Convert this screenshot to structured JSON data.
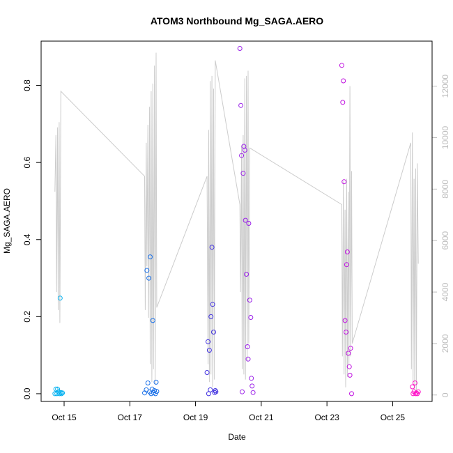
{
  "chart_data": {
    "type": "scatter",
    "title": "ATOM3 Northbound Mg_SAGA.AERO",
    "xlabel": "Date",
    "ylabel": "Mg_SAGA.AERO",
    "x_ticks": [
      "Oct 15",
      "Oct 17",
      "Oct 19",
      "Oct 21",
      "Oct 23",
      "Oct 25"
    ],
    "x_tick_days": [
      15,
      17,
      19,
      21,
      23,
      25
    ],
    "xlim": [
      14.3,
      26.2
    ],
    "ylim": [
      -0.02,
      0.915
    ],
    "y_ticks": [
      "0.0",
      "0.2",
      "0.4",
      "0.6",
      "0.8"
    ],
    "y_tick_values": [
      0.0,
      0.2,
      0.4,
      0.6,
      0.8
    ],
    "y2_ticks": [
      "0",
      "2000",
      "4000",
      "6000",
      "8000",
      "10000",
      "12000"
    ],
    "y2_tick_values": [
      0,
      2000,
      4000,
      6000,
      8000,
      10000,
      12000
    ],
    "y2lim": [
      -250,
      13750
    ],
    "line_color": "#cccccc",
    "scatter_series": [
      {
        "color": "#00b0f0",
        "x": [
          14.72,
          14.75,
          14.78,
          14.8,
          14.83,
          14.86,
          14.88,
          14.9,
          14.92,
          14.95
        ],
        "y": [
          0.0,
          0.012,
          0.0,
          0.012,
          0.005,
          0.0,
          0.248,
          0.003,
          0.0,
          0.002
        ]
      },
      {
        "color": "#1a70e8",
        "x": [
          17.45,
          17.5,
          17.52,
          17.55,
          17.58,
          17.6,
          17.62,
          17.65,
          17.68,
          17.7,
          17.72,
          17.75,
          17.78,
          17.8,
          17.82
        ],
        "y": [
          0.002,
          0.01,
          0.32,
          0.028,
          0.3,
          0.005,
          0.355,
          0.0,
          0.012,
          0.19,
          0.003,
          0.008,
          0.0,
          0.03,
          0.006
        ]
      },
      {
        "color": "#4030e0",
        "x": [
          19.35,
          19.38,
          19.4,
          19.42,
          19.45,
          19.47,
          19.5,
          19.52,
          19.55,
          19.58,
          19.6,
          19.62
        ],
        "y": [
          0.055,
          0.135,
          0.0,
          0.113,
          0.01,
          0.2,
          0.38,
          0.232,
          0.16,
          0.003,
          0.008,
          0.005
        ]
      },
      {
        "color": "#9a20e8",
        "x": [
          20.35,
          20.38,
          20.4,
          20.42,
          20.45,
          20.47,
          20.5,
          20.52,
          20.55,
          20.58,
          20.6,
          20.62,
          20.65,
          20.68,
          20.7,
          20.72,
          20.75
        ],
        "y": [
          0.896,
          0.748,
          0.618,
          0.005,
          0.572,
          0.642,
          0.632,
          0.45,
          0.31,
          0.122,
          0.09,
          0.442,
          0.243,
          0.198,
          0.04,
          0.02,
          0.003
        ]
      },
      {
        "color": "#c010e0",
        "x": [
          23.45,
          23.48,
          23.5,
          23.52,
          23.55,
          23.58,
          23.6,
          23.62,
          23.65,
          23.68,
          23.7,
          23.72,
          23.75
        ],
        "y": [
          0.852,
          0.756,
          0.812,
          0.55,
          0.19,
          0.16,
          0.335,
          0.368,
          0.105,
          0.07,
          0.048,
          0.118,
          0.0
        ]
      },
      {
        "color": "#ff10c8",
        "x": [
          25.6,
          25.62,
          25.65,
          25.68,
          25.7,
          25.72,
          25.75,
          25.78
        ],
        "y": [
          0.018,
          0.0,
          0.005,
          0.028,
          0.0,
          0.002,
          0.0,
          0.005
        ]
      }
    ],
    "line_y2": {
      "x": [
        14.72,
        14.75,
        14.77,
        14.8,
        14.82,
        14.85,
        14.87,
        14.9,
        17.45,
        17.47,
        17.5,
        17.52,
        17.55,
        17.57,
        17.6,
        17.62,
        17.65,
        17.67,
        17.7,
        17.72,
        17.75,
        17.77,
        17.8,
        17.82,
        19.35,
        19.38,
        19.4,
        19.42,
        19.45,
        19.47,
        19.5,
        19.52,
        19.55,
        19.57,
        19.6,
        20.35,
        20.37,
        20.4,
        20.42,
        20.45,
        20.47,
        20.5,
        20.52,
        20.55,
        20.57,
        20.6,
        20.62,
        20.65,
        23.45,
        23.47,
        23.5,
        23.52,
        23.55,
        23.57,
        23.6,
        23.62,
        23.65,
        23.67,
        23.7,
        23.72,
        23.75,
        23.77,
        25.55,
        25.57,
        25.6,
        25.62,
        25.65,
        25.67,
        25.7,
        25.72,
        25.75,
        25.78
      ],
      "y": [
        7900,
        10100,
        4000,
        10400,
        3300,
        10600,
        2800,
        11800,
        8500,
        3300,
        9800,
        5000,
        10500,
        3000,
        11200,
        1200,
        11800,
        500,
        12100,
        1000,
        12800,
        400,
        13300,
        3400,
        8500,
        1200,
        10300,
        500,
        12200,
        800,
        12400,
        300,
        11900,
        600,
        13000,
        7400,
        4000,
        9700,
        1000,
        10100,
        800,
        12300,
        600,
        12400,
        1300,
        12600,
        2000,
        9600,
        7400,
        1500,
        8300,
        800,
        7200,
        300,
        8400,
        700,
        7900,
        1200,
        12000,
        1500,
        8700,
        2000,
        9800,
        1000,
        10200,
        500,
        8400,
        200,
        8800,
        100,
        9000,
        5100
      ]
    }
  }
}
